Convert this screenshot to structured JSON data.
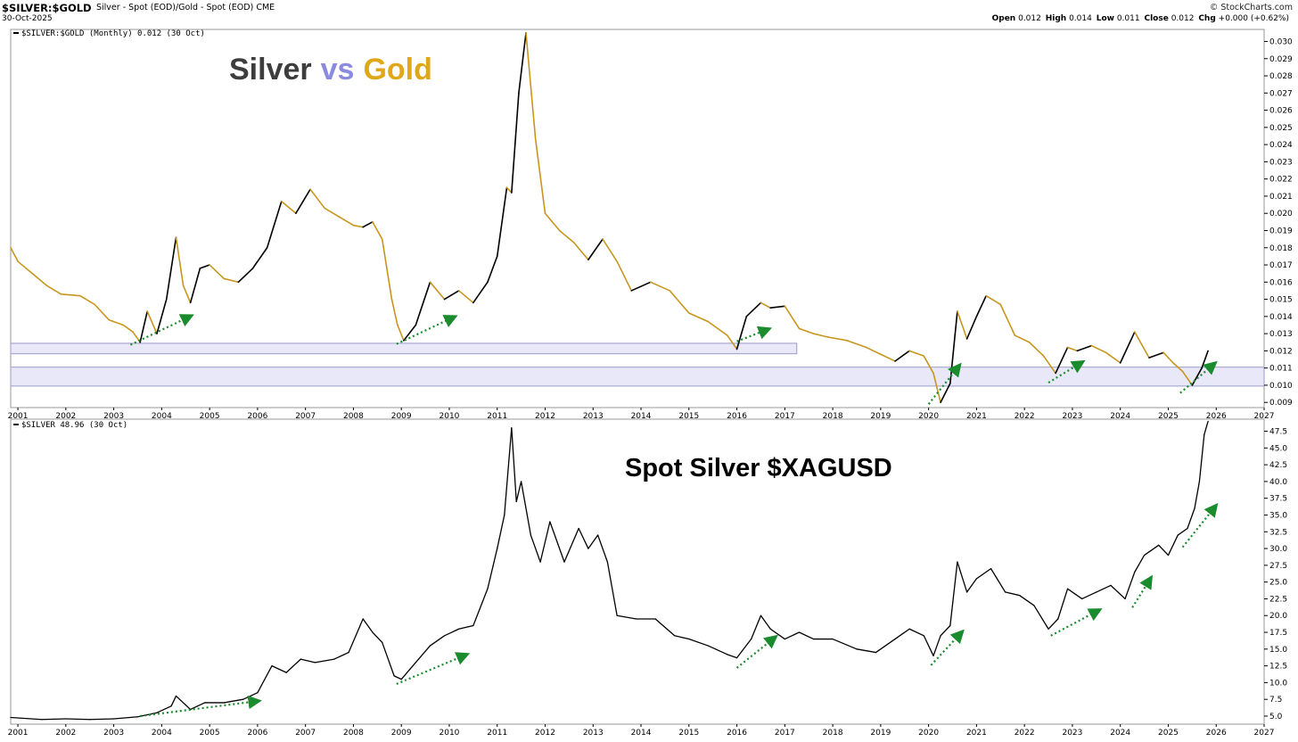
{
  "header": {
    "symbol": "$SILVER:$GOLD",
    "description": "Silver - Spot (EOD)/Gold - Spot (EOD)  CME",
    "date": "30-Oct-2025",
    "brand": "© StockCharts.com",
    "ohlc": [
      {
        "label": "Open",
        "value": "0.012"
      },
      {
        "label": "High",
        "value": "0.014"
      },
      {
        "label": "Low",
        "value": "0.011"
      },
      {
        "label": "Close",
        "value": "0.012"
      },
      {
        "label": "Chg",
        "value": "+0.000 (+0.62%)"
      }
    ]
  },
  "colors": {
    "up": "#000000",
    "down": "#c8961e",
    "arrow": "#1a8c2e",
    "band_fill": "#e8e8f8",
    "band_stroke": "#9a9ac8",
    "title_silver": "#3d3d3d",
    "title_vs": "#8a8ae0",
    "title_gold": "#e0a818"
  },
  "chart_data": [
    {
      "type": "line",
      "legend": "$SILVER:$GOLD (Monthly) 0.012 (30 Oct)",
      "title": {
        "part1": "Silver",
        "part2": "vs",
        "part3": "Gold"
      },
      "ylim": [
        0.0087,
        0.0307
      ],
      "xlim": [
        2000.85,
        2027.0
      ],
      "y_ticks": [
        "0.030",
        "0.029",
        "0.028",
        "0.027",
        "0.026",
        "0.025",
        "0.024",
        "0.023",
        "0.022",
        "0.021",
        "0.020",
        "0.019",
        "0.018",
        "0.017",
        "0.016",
        "0.015",
        "0.014",
        "0.013",
        "0.012",
        "0.011",
        "0.010",
        "0.009"
      ],
      "x_ticks": [
        "2001",
        "2002",
        "2003",
        "2004",
        "2005",
        "2006",
        "2007",
        "2008",
        "2009",
        "2010",
        "2011",
        "2012",
        "2013",
        "2014",
        "2015",
        "2016",
        "2017",
        "2018",
        "2019",
        "2020",
        "2021",
        "2022",
        "2023",
        "2024",
        "2025",
        "2026",
        "2027"
      ],
      "series": [
        {
          "x": [
            2000.85,
            2001.0,
            2001.3,
            2001.6,
            2001.9,
            2002.3,
            2002.6,
            2002.9,
            2003.2,
            2003.4,
            2003.55,
            2003.7,
            2003.9,
            2004.1,
            2004.3,
            2004.45,
            2004.6,
            2004.8,
            2005.0,
            2005.3,
            2005.6,
            2005.9,
            2006.2,
            2006.5,
            2006.8,
            2007.1,
            2007.4,
            2007.7,
            2008.0,
            2008.2,
            2008.4,
            2008.6,
            2008.8,
            2008.92,
            2009.05,
            2009.3,
            2009.6,
            2009.9,
            2010.2,
            2010.5,
            2010.8,
            2011.0,
            2011.2,
            2011.3,
            2011.45,
            2011.6,
            2011.8,
            2012.0,
            2012.3,
            2012.6,
            2012.9,
            2013.2,
            2013.5,
            2013.8,
            2014.2,
            2014.6,
            2015.0,
            2015.4,
            2015.8,
            2016.0,
            2016.2,
            2016.5,
            2016.7,
            2017.0,
            2017.3,
            2017.6,
            2017.9,
            2018.3,
            2018.7,
            2019.0,
            2019.3,
            2019.6,
            2019.9,
            2020.1,
            2020.25,
            2020.45,
            2020.6,
            2020.8,
            2021.0,
            2021.2,
            2021.5,
            2021.8,
            2022.1,
            2022.4,
            2022.65,
            2022.9,
            2023.1,
            2023.4,
            2023.7,
            2024.0,
            2024.3,
            2024.6,
            2024.9,
            2025.1,
            2025.3,
            2025.5,
            2025.7,
            2025.83
          ],
          "values": [
            0.018,
            0.0172,
            0.0165,
            0.0158,
            0.0153,
            0.0152,
            0.0147,
            0.0138,
            0.0135,
            0.0131,
            0.0125,
            0.0143,
            0.013,
            0.015,
            0.0186,
            0.0158,
            0.0148,
            0.0168,
            0.017,
            0.0162,
            0.016,
            0.0168,
            0.018,
            0.0207,
            0.02,
            0.0214,
            0.0203,
            0.0198,
            0.0193,
            0.0192,
            0.0195,
            0.0185,
            0.015,
            0.0135,
            0.0126,
            0.0135,
            0.016,
            0.015,
            0.0155,
            0.0148,
            0.016,
            0.0175,
            0.0215,
            0.0212,
            0.027,
            0.0305,
            0.0243,
            0.02,
            0.019,
            0.0183,
            0.0173,
            0.0185,
            0.0172,
            0.0155,
            0.016,
            0.0155,
            0.0142,
            0.0137,
            0.0129,
            0.0121,
            0.014,
            0.0148,
            0.0145,
            0.0146,
            0.0133,
            0.013,
            0.0128,
            0.0126,
            0.0122,
            0.0118,
            0.0114,
            0.012,
            0.0117,
            0.0107,
            0.009,
            0.0101,
            0.0143,
            0.0127,
            0.014,
            0.0152,
            0.0147,
            0.0129,
            0.0125,
            0.0117,
            0.0107,
            0.0122,
            0.012,
            0.0123,
            0.0119,
            0.0113,
            0.0131,
            0.0116,
            0.0119,
            0.0113,
            0.0108,
            0.01,
            0.011,
            0.012
          ]
        }
      ],
      "bands": [
        {
          "from": 0.01183,
          "to": 0.01244,
          "x_from": 2000.85,
          "x_to": 2017.25
        },
        {
          "from": 0.00995,
          "to": 0.01105,
          "x_from": 2000.85,
          "x_to": 2027.0
        }
      ],
      "arrows": [
        [
          2003.35,
          0.01235,
          2004.55,
          0.01395
        ],
        [
          2008.9,
          0.0124,
          2010.05,
          0.0139
        ],
        [
          2016.0,
          0.01255,
          2016.6,
          0.0132
        ],
        [
          2020.0,
          0.0089,
          2020.6,
          0.011
        ],
        [
          2022.5,
          0.01015,
          2023.15,
          0.01125
        ],
        [
          2025.25,
          0.00955,
          2025.92,
          0.01115
        ]
      ],
      "grid": false
    },
    {
      "type": "line",
      "legend": "$SILVER 48.96 (30 Oct)",
      "title": "Spot Silver $XAGUSD",
      "ylim": [
        3.8,
        49.3
      ],
      "xlim": [
        2000.85,
        2027.0
      ],
      "y_ticks": [
        "47.5",
        "45.0",
        "42.5",
        "40.0",
        "37.5",
        "35.0",
        "32.5",
        "30.0",
        "27.5",
        "25.0",
        "22.5",
        "20.0",
        "17.5",
        "15.0",
        "12.5",
        "10.0",
        "7.5",
        "5.0"
      ],
      "x_ticks": [
        "2001",
        "2002",
        "2003",
        "2004",
        "2005",
        "2006",
        "2007",
        "2008",
        "2009",
        "2010",
        "2011",
        "2012",
        "2013",
        "2014",
        "2015",
        "2016",
        "2017",
        "2018",
        "2019",
        "2020",
        "2021",
        "2022",
        "2023",
        "2024",
        "2025",
        "2026",
        "2027"
      ],
      "series": [
        {
          "x": [
            2000.85,
            2001.5,
            2002.0,
            2002.5,
            2003.0,
            2003.5,
            2003.9,
            2004.2,
            2004.3,
            2004.6,
            2004.9,
            2005.3,
            2005.7,
            2006.0,
            2006.3,
            2006.6,
            2006.9,
            2007.2,
            2007.6,
            2007.9,
            2008.2,
            2008.4,
            2008.6,
            2008.85,
            2009.0,
            2009.3,
            2009.6,
            2009.9,
            2010.2,
            2010.5,
            2010.8,
            2011.0,
            2011.15,
            2011.3,
            2011.4,
            2011.5,
            2011.7,
            2011.9,
            2012.1,
            2012.4,
            2012.7,
            2012.9,
            2013.1,
            2013.3,
            2013.5,
            2013.9,
            2014.3,
            2014.7,
            2015.0,
            2015.4,
            2015.8,
            2016.0,
            2016.3,
            2016.5,
            2016.7,
            2017.0,
            2017.3,
            2017.6,
            2018.0,
            2018.5,
            2018.9,
            2019.3,
            2019.6,
            2019.9,
            2020.1,
            2020.25,
            2020.45,
            2020.6,
            2020.8,
            2021.0,
            2021.3,
            2021.6,
            2021.9,
            2022.2,
            2022.5,
            2022.7,
            2022.9,
            2023.2,
            2023.5,
            2023.8,
            2024.1,
            2024.3,
            2024.5,
            2024.8,
            2025.0,
            2025.2,
            2025.4,
            2025.55,
            2025.65,
            2025.75,
            2025.83
          ],
          "values": [
            4.8,
            4.5,
            4.6,
            4.5,
            4.6,
            4.9,
            5.5,
            6.5,
            8.0,
            6.0,
            7.0,
            7.0,
            7.5,
            8.5,
            12.5,
            11.5,
            13.5,
            13.0,
            13.5,
            14.5,
            19.5,
            17.5,
            16.0,
            11.0,
            10.5,
            13.0,
            15.5,
            17.0,
            18.0,
            18.5,
            24.0,
            30.0,
            35.0,
            48.0,
            37.0,
            40.0,
            32.0,
            28.0,
            34.0,
            28.0,
            33.0,
            30.0,
            32.0,
            28.0,
            20.0,
            19.5,
            19.5,
            17.0,
            16.5,
            15.5,
            14.2,
            13.7,
            16.5,
            20.0,
            18.0,
            16.5,
            17.5,
            16.5,
            16.5,
            15.0,
            14.5,
            16.5,
            18.0,
            17.0,
            14.0,
            17.0,
            18.5,
            28.0,
            23.5,
            25.5,
            27.0,
            23.5,
            23.0,
            21.5,
            18.0,
            19.5,
            24.0,
            22.5,
            23.5,
            24.5,
            22.5,
            26.5,
            29.0,
            30.5,
            29.0,
            32.0,
            33.0,
            36.0,
            40.0,
            47.0,
            48.96
          ]
        }
      ],
      "arrows": [
        [
          2003.55,
          5.0,
          2005.95,
          7.2
        ],
        [
          2008.9,
          9.8,
          2010.3,
          14.0
        ],
        [
          2016.0,
          12.2,
          2016.75,
          16.5
        ],
        [
          2020.05,
          12.6,
          2020.65,
          17.2
        ],
        [
          2022.55,
          17.0,
          2023.5,
          20.6
        ],
        [
          2024.25,
          21.2,
          2024.6,
          25.2
        ],
        [
          2025.3,
          30.2,
          2025.95,
          36.0
        ]
      ],
      "grid": false
    }
  ]
}
